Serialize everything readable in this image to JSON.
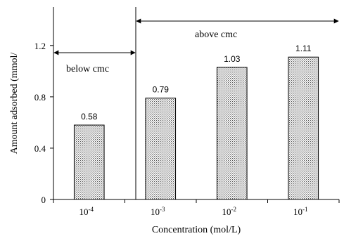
{
  "chart_data": {
    "type": "bar",
    "categories": [
      {
        "base": "10",
        "exp": "-4"
      },
      {
        "base": "10",
        "exp": "-3"
      },
      {
        "base": "10",
        "exp": "-2"
      },
      {
        "base": "10",
        "exp": "-1"
      }
    ],
    "values": [
      0.58,
      0.79,
      1.03,
      1.11
    ],
    "value_labels": [
      "0.58",
      "0.79",
      "1.03",
      "1.11"
    ],
    "xlabel": "Concentration (mol/L)",
    "ylabel": "Amount adsorbed (mmol/",
    "ylim": [
      0,
      1.5
    ],
    "yticks": [
      0,
      0.4,
      0.8,
      1.2
    ],
    "ytick_labels": [
      "0",
      "0.4",
      "0.8",
      "1.2"
    ],
    "grid": false,
    "bar_fill": "dotted-gray",
    "annotations": {
      "below": {
        "text": "below cmc"
      },
      "above": {
        "text": "above cmc"
      }
    }
  }
}
